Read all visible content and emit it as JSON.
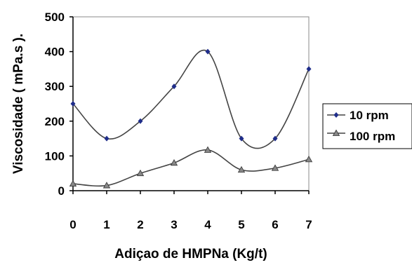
{
  "chart_data": {
    "type": "line",
    "xlabel": "Adiçao de  HMPNa (Kg/t)",
    "ylabel": "Viscosidade ( mPa.s ).",
    "x": [
      0,
      1,
      2,
      3,
      4,
      5,
      6,
      7
    ],
    "xlim": [
      0,
      7
    ],
    "ylim": [
      0,
      500
    ],
    "xticks": [
      "0",
      "1",
      "2",
      "3",
      "4",
      "5",
      "6",
      "7"
    ],
    "yticks": [
      "0",
      "100",
      "200",
      "300",
      "400",
      "500"
    ],
    "grid": false,
    "legend_position": "right",
    "series": [
      {
        "name": "10 rpm",
        "values": [
          250,
          150,
          200,
          300,
          400,
          150,
          150,
          350
        ],
        "color": "#1f2d8a",
        "marker": "diamond"
      },
      {
        "name": "100 rpm",
        "values": [
          20,
          15,
          50,
          80,
          117,
          60,
          65,
          90
        ],
        "color": "#333333",
        "marker": "triangle"
      }
    ]
  }
}
